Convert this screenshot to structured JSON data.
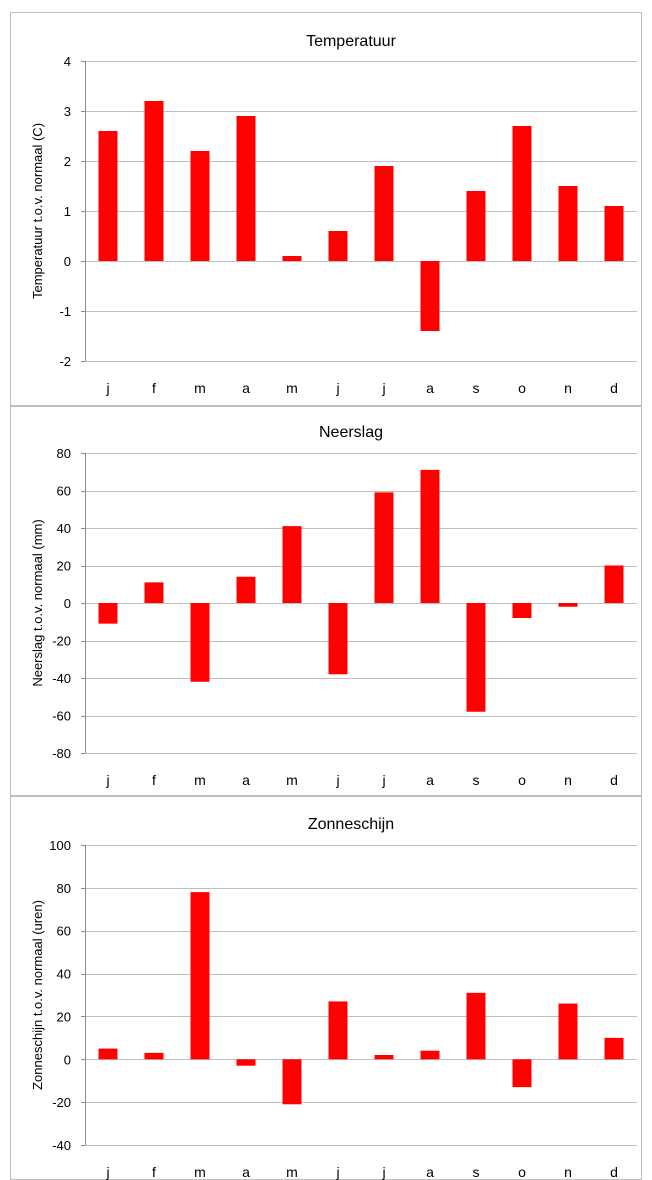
{
  "chart_data": [
    {
      "type": "bar",
      "title": "Temperatuur",
      "ylabel": "Temperatuur t.o.v. normaal (C)",
      "xlabel": "",
      "categories": [
        "j",
        "f",
        "m",
        "a",
        "m",
        "j",
        "j",
        "a",
        "s",
        "o",
        "n",
        "d"
      ],
      "values": [
        2.6,
        3.2,
        2.2,
        2.9,
        0.1,
        0.6,
        1.9,
        -1.4,
        1.4,
        2.7,
        1.5,
        1.1
      ],
      "ylim": [
        -2,
        4
      ],
      "yticks": [
        -2,
        -1,
        0,
        1,
        2,
        3,
        4
      ],
      "grid": true,
      "color": "#ff0000"
    },
    {
      "type": "bar",
      "title": "Neerslag",
      "ylabel": "Neerslag t.o.v. normaal (mm)",
      "xlabel": "",
      "categories": [
        "j",
        "f",
        "m",
        "a",
        "m",
        "j",
        "j",
        "a",
        "s",
        "o",
        "n",
        "d"
      ],
      "values": [
        -11,
        11,
        -42,
        14,
        41,
        -38,
        59,
        71,
        -58,
        -8,
        -2,
        20
      ],
      "ylim": [
        -80,
        80
      ],
      "yticks": [
        -80,
        -60,
        -40,
        -20,
        0,
        20,
        40,
        60,
        80
      ],
      "grid": true,
      "color": "#ff0000"
    },
    {
      "type": "bar",
      "title": "Zonneschijn",
      "ylabel": "Zonneschijn t.o.v. normaal (uren)",
      "xlabel": "",
      "categories": [
        "j",
        "f",
        "m",
        "a",
        "m",
        "j",
        "j",
        "a",
        "s",
        "o",
        "n",
        "d"
      ],
      "values": [
        5,
        3,
        78,
        -3,
        -21,
        27,
        2,
        4,
        31,
        -13,
        26,
        10
      ],
      "ylim": [
        -40,
        100
      ],
      "yticks": [
        -40,
        -20,
        0,
        20,
        40,
        60,
        80,
        100
      ],
      "grid": true,
      "color": "#ff0000"
    }
  ]
}
